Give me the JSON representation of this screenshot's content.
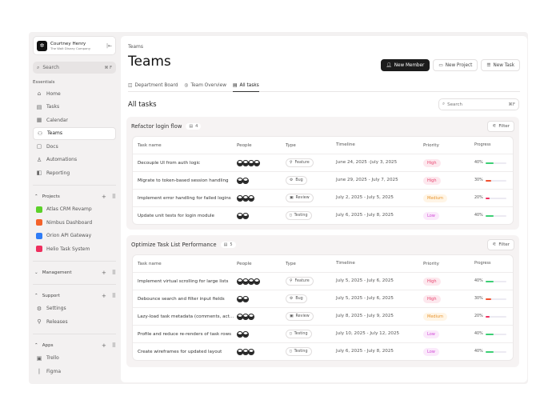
{
  "account": {
    "name": "Courtney Henry",
    "company": "The Walt Disney Company"
  },
  "sidebar": {
    "search_placeholder": "Search",
    "search_shortcut": "⌘ F",
    "essentials_label": "Essentials",
    "items": [
      {
        "label": "Home",
        "icon": "home-icon"
      },
      {
        "label": "Tasks",
        "icon": "tasks-icon"
      },
      {
        "label": "Calendar",
        "icon": "calendar-icon"
      },
      {
        "label": "Teams",
        "icon": "teams-icon",
        "active": true
      },
      {
        "label": "Docs",
        "icon": "docs-icon"
      },
      {
        "label": "Automations",
        "icon": "automations-icon"
      },
      {
        "label": "Reporting",
        "icon": "reporting-icon"
      }
    ],
    "projects_label": "Projects",
    "projects": [
      {
        "label": "Atlas CRM Revamp",
        "color": "#5cd12a"
      },
      {
        "label": "Nimbus Dashboard",
        "color": "#f4622a"
      },
      {
        "label": "Orion API Gateway",
        "color": "#2f7cf6"
      },
      {
        "label": "Helio Task System",
        "color": "#ee2f5e"
      }
    ],
    "management_label": "Management",
    "support_label": "Support",
    "support_items": [
      {
        "label": "Settings"
      },
      {
        "label": "Releases"
      }
    ],
    "apps_label": "Apps",
    "apps": [
      {
        "label": "Trello"
      },
      {
        "label": "Figma"
      }
    ]
  },
  "header": {
    "breadcrumb": "Teams",
    "title": "Teams",
    "new_member": "New Member",
    "new_project": "New Project",
    "new_task": "New Task"
  },
  "tabs": [
    {
      "label": "Department Board"
    },
    {
      "label": "Team Overview"
    },
    {
      "label": "All tasks",
      "active": true
    }
  ],
  "section": {
    "title": "All tasks",
    "search_placeholder": "Search",
    "search_shortcut": "⌘F"
  },
  "columns": [
    "Task name",
    "People",
    "Type",
    "Timeline",
    "Priority",
    "Progress"
  ],
  "filter_label": "Filter",
  "priority_colors": {
    "High": [
      "#fde8ee",
      "#e8456f"
    ],
    "Medium": [
      "#fff5e6",
      "#e8952f"
    ],
    "Low": [
      "#fbe9fb",
      "#d04ad6"
    ]
  },
  "groups": [
    {
      "title": "Refactor login flow",
      "count": "4",
      "rows": [
        {
          "name": "Decouple UI from auth logic",
          "people": 4,
          "type": "Feature",
          "timeline": "June 24, 2025 -July 3, 2025",
          "priority": "High",
          "progress": 40,
          "bar_color": "#3ccf74"
        },
        {
          "name": "Migrate to token-based session handling",
          "people": 2,
          "type": "Bug",
          "timeline": "June 29, 2025 - July 7, 2025",
          "priority": "High",
          "progress": 30,
          "bar_color": "#f0502e"
        },
        {
          "name": "Implement error handling for failed logins",
          "people": 3,
          "type": "Review",
          "timeline": "July 2, 2025 - July 5, 2025",
          "priority": "Medium",
          "progress": 20,
          "bar_color": "#ee2f5e"
        },
        {
          "name": "Update unit tests for login module",
          "people": 2,
          "type": "Testing",
          "timeline": "July 6, 2025 - July 8, 2025",
          "priority": "Low",
          "progress": 40,
          "bar_color": "#3ccf74"
        }
      ]
    },
    {
      "title": "Optimize Task List Performance",
      "count": "5",
      "rows": [
        {
          "name": "Implement virtual scrolling for large lists",
          "people": 4,
          "type": "Feature",
          "timeline": "July 5, 2025 - July 6, 2025",
          "priority": "High",
          "progress": 40,
          "bar_color": "#3ccf74"
        },
        {
          "name": "Debounce search and filter input fields",
          "people": 2,
          "type": "Bug",
          "timeline": "July 5, 2025 - July 6, 2025",
          "priority": "High",
          "progress": 30,
          "bar_color": "#f0502e"
        },
        {
          "name": "Lazy-load task metadata (comments, act...",
          "people": 3,
          "type": "Review",
          "timeline": "July 8, 2025 - July 9, 2025",
          "priority": "Medium",
          "progress": 20,
          "bar_color": "#ee2f5e"
        },
        {
          "name": "Profile and reduce re-renders of task rows",
          "people": 2,
          "type": "Testing",
          "timeline": "July 10, 2025 - July 12, 2025",
          "priority": "Low",
          "progress": 40,
          "bar_color": "#3ccf74"
        },
        {
          "name": "Create wireframes for updated layout",
          "people": 3,
          "type": "Testing",
          "timeline": "July 6, 2025 - July 8, 2025",
          "priority": "Low",
          "progress": 40,
          "bar_color": "#3ccf74"
        }
      ]
    }
  ]
}
